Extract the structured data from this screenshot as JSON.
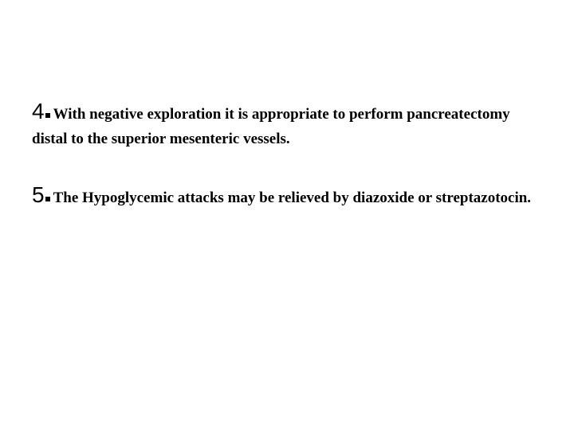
{
  "text_color": "#000000",
  "background_color": "#ffffff",
  "items": [
    {
      "number": "4",
      "text": "With negative exploration it is appropriate to perform pancreatectomy distal to the superior mesenteric vessels."
    },
    {
      "number": "5",
      "text": "The Hypoglycemic attacks may be relieved by diazoxide or streptazotocin."
    }
  ],
  "typography": {
    "number_font": "sans-serif",
    "number_fontsize_pt": 21,
    "body_font": "serif",
    "body_fontsize_pt": 14,
    "body_weight": "semibold"
  }
}
